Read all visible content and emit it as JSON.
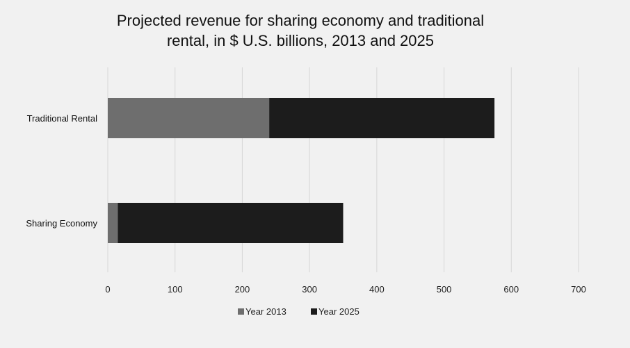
{
  "chart_data": {
    "type": "bar",
    "orientation": "horizontal",
    "stacked": true,
    "title_lines": [
      "Projected revenue for sharing economy and traditional",
      "rental, in $ U.S. billions, 2013 and 2025"
    ],
    "categories": [
      "Traditional Rental",
      "Sharing Economy"
    ],
    "series": [
      {
        "name": "Year 2013",
        "values": [
          240,
          15
        ],
        "color": "#6e6e6e"
      },
      {
        "name": "Year 2025",
        "values": [
          335,
          335
        ],
        "color": "#1c1c1c"
      }
    ],
    "xlim": [
      0,
      700
    ],
    "xticks": [
      0,
      100,
      200,
      300,
      400,
      500,
      600,
      700
    ],
    "grid": true,
    "legend_position": "bottom"
  }
}
